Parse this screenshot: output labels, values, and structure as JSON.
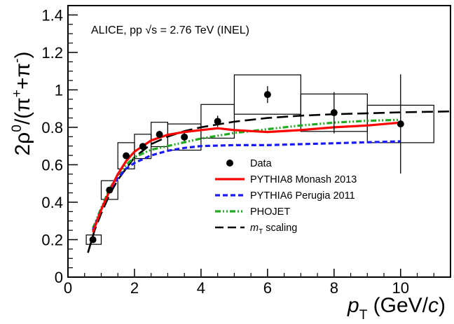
{
  "chart_data": {
    "type": "scatter",
    "annotation": "ALICE, pp √s = 2.76 TeV (INEL)",
    "xlabel": "p_T (GeV/c)",
    "ylabel": "2ρ⁰/(π⁺+π⁻)",
    "xlim": [
      0,
      11.5
    ],
    "ylim": [
      0,
      1.45
    ],
    "x_ticks": [
      0,
      2,
      4,
      6,
      8,
      10
    ],
    "y_ticks": [
      0,
      0.2,
      0.4,
      0.6,
      0.8,
      1,
      1.2,
      1.4
    ],
    "x_tick_labels": [
      "0",
      "2",
      "4",
      "6",
      "8",
      "10"
    ],
    "y_tick_labels": [
      "0",
      "0.2",
      "0.4",
      "0.6",
      "0.8",
      "1",
      "1.2",
      "1.4"
    ],
    "legend_position": "center-right",
    "data": {
      "name": "Data",
      "points": [
        {
          "x": 0.75,
          "y": 0.2,
          "stat": 0.01,
          "sys": 0.025,
          "xlo": 0.55,
          "xhi": 1.0
        },
        {
          "x": 1.25,
          "y": 0.465,
          "stat": 0.01,
          "sys": 0.05,
          "xlo": 1.0,
          "xhi": 1.5
        },
        {
          "x": 1.75,
          "y": 0.648,
          "stat": 0.012,
          "sys": 0.07,
          "xlo": 1.5,
          "xhi": 2.0
        },
        {
          "x": 2.25,
          "y": 0.698,
          "stat": 0.015,
          "sys": 0.065,
          "xlo": 2.0,
          "xhi": 2.5
        },
        {
          "x": 2.75,
          "y": 0.762,
          "stat": 0.02,
          "sys": 0.065,
          "xlo": 2.5,
          "xhi": 3.0
        },
        {
          "x": 3.5,
          "y": 0.748,
          "stat": 0.022,
          "sys": 0.07,
          "xlo": 3.0,
          "xhi": 4.0
        },
        {
          "x": 4.5,
          "y": 0.832,
          "stat": 0.03,
          "sys": 0.09,
          "xlo": 4.0,
          "xhi": 5.0
        },
        {
          "x": 6.0,
          "y": 0.975,
          "stat": 0.045,
          "sys": 0.105,
          "xlo": 5.0,
          "xhi": 7.0
        },
        {
          "x": 8.0,
          "y": 0.878,
          "stat": 0.11,
          "sys": 0.1,
          "xlo": 7.0,
          "xhi": 9.0
        },
        {
          "x": 10.0,
          "y": 0.818,
          "stat": 0.265,
          "sys": 0.1,
          "xlo": 9.0,
          "xhi": 11.0
        }
      ]
    },
    "series": [
      {
        "name": "PYTHIA8 Monash 2013",
        "color": "#ff0000",
        "x": [
          0.75,
          1.0,
          1.25,
          1.5,
          1.75,
          2.0,
          2.5,
          3.0,
          3.5,
          4.0,
          4.5,
          5.0,
          5.5,
          6.0,
          7.0,
          8.0,
          9.0,
          10.0
        ],
        "y": [
          0.24,
          0.36,
          0.46,
          0.55,
          0.62,
          0.67,
          0.73,
          0.76,
          0.775,
          0.785,
          0.795,
          0.785,
          0.78,
          0.775,
          0.785,
          0.8,
          0.81,
          0.825
        ]
      },
      {
        "name": "PYTHIA6 Perugia 2011",
        "color": "#1a1aff",
        "x": [
          0.75,
          1.0,
          1.25,
          1.5,
          1.75,
          2.0,
          2.5,
          3.0,
          3.5,
          4.0,
          5.0,
          6.0,
          7.0,
          8.0,
          9.0,
          10.0
        ],
        "y": [
          0.25,
          0.36,
          0.46,
          0.53,
          0.58,
          0.61,
          0.65,
          0.675,
          0.69,
          0.7,
          0.705,
          0.705,
          0.71,
          0.715,
          0.72,
          0.725
        ]
      },
      {
        "name": "PHOJET",
        "color": "#22aa22",
        "x": [
          0.75,
          1.0,
          1.25,
          1.5,
          1.75,
          2.0,
          2.5,
          3.0,
          3.5,
          4.0,
          5.0,
          6.0,
          7.0,
          8.0,
          9.0,
          10.0
        ],
        "y": [
          0.26,
          0.37,
          0.47,
          0.545,
          0.6,
          0.64,
          0.68,
          0.7,
          0.72,
          0.74,
          0.77,
          0.79,
          0.81,
          0.825,
          0.835,
          0.84
        ]
      },
      {
        "name": "m_T scaling",
        "color": "#000000",
        "x": [
          0.6,
          0.8,
          1.0,
          1.25,
          1.5,
          2.0,
          2.5,
          3.0,
          3.5,
          4.0,
          5.0,
          6.0,
          7.0,
          8.0,
          9.0,
          10.0,
          11.5
        ],
        "y": [
          0.13,
          0.25,
          0.34,
          0.44,
          0.52,
          0.64,
          0.71,
          0.75,
          0.78,
          0.8,
          0.83,
          0.85,
          0.862,
          0.87,
          0.875,
          0.88,
          0.885
        ]
      }
    ]
  }
}
